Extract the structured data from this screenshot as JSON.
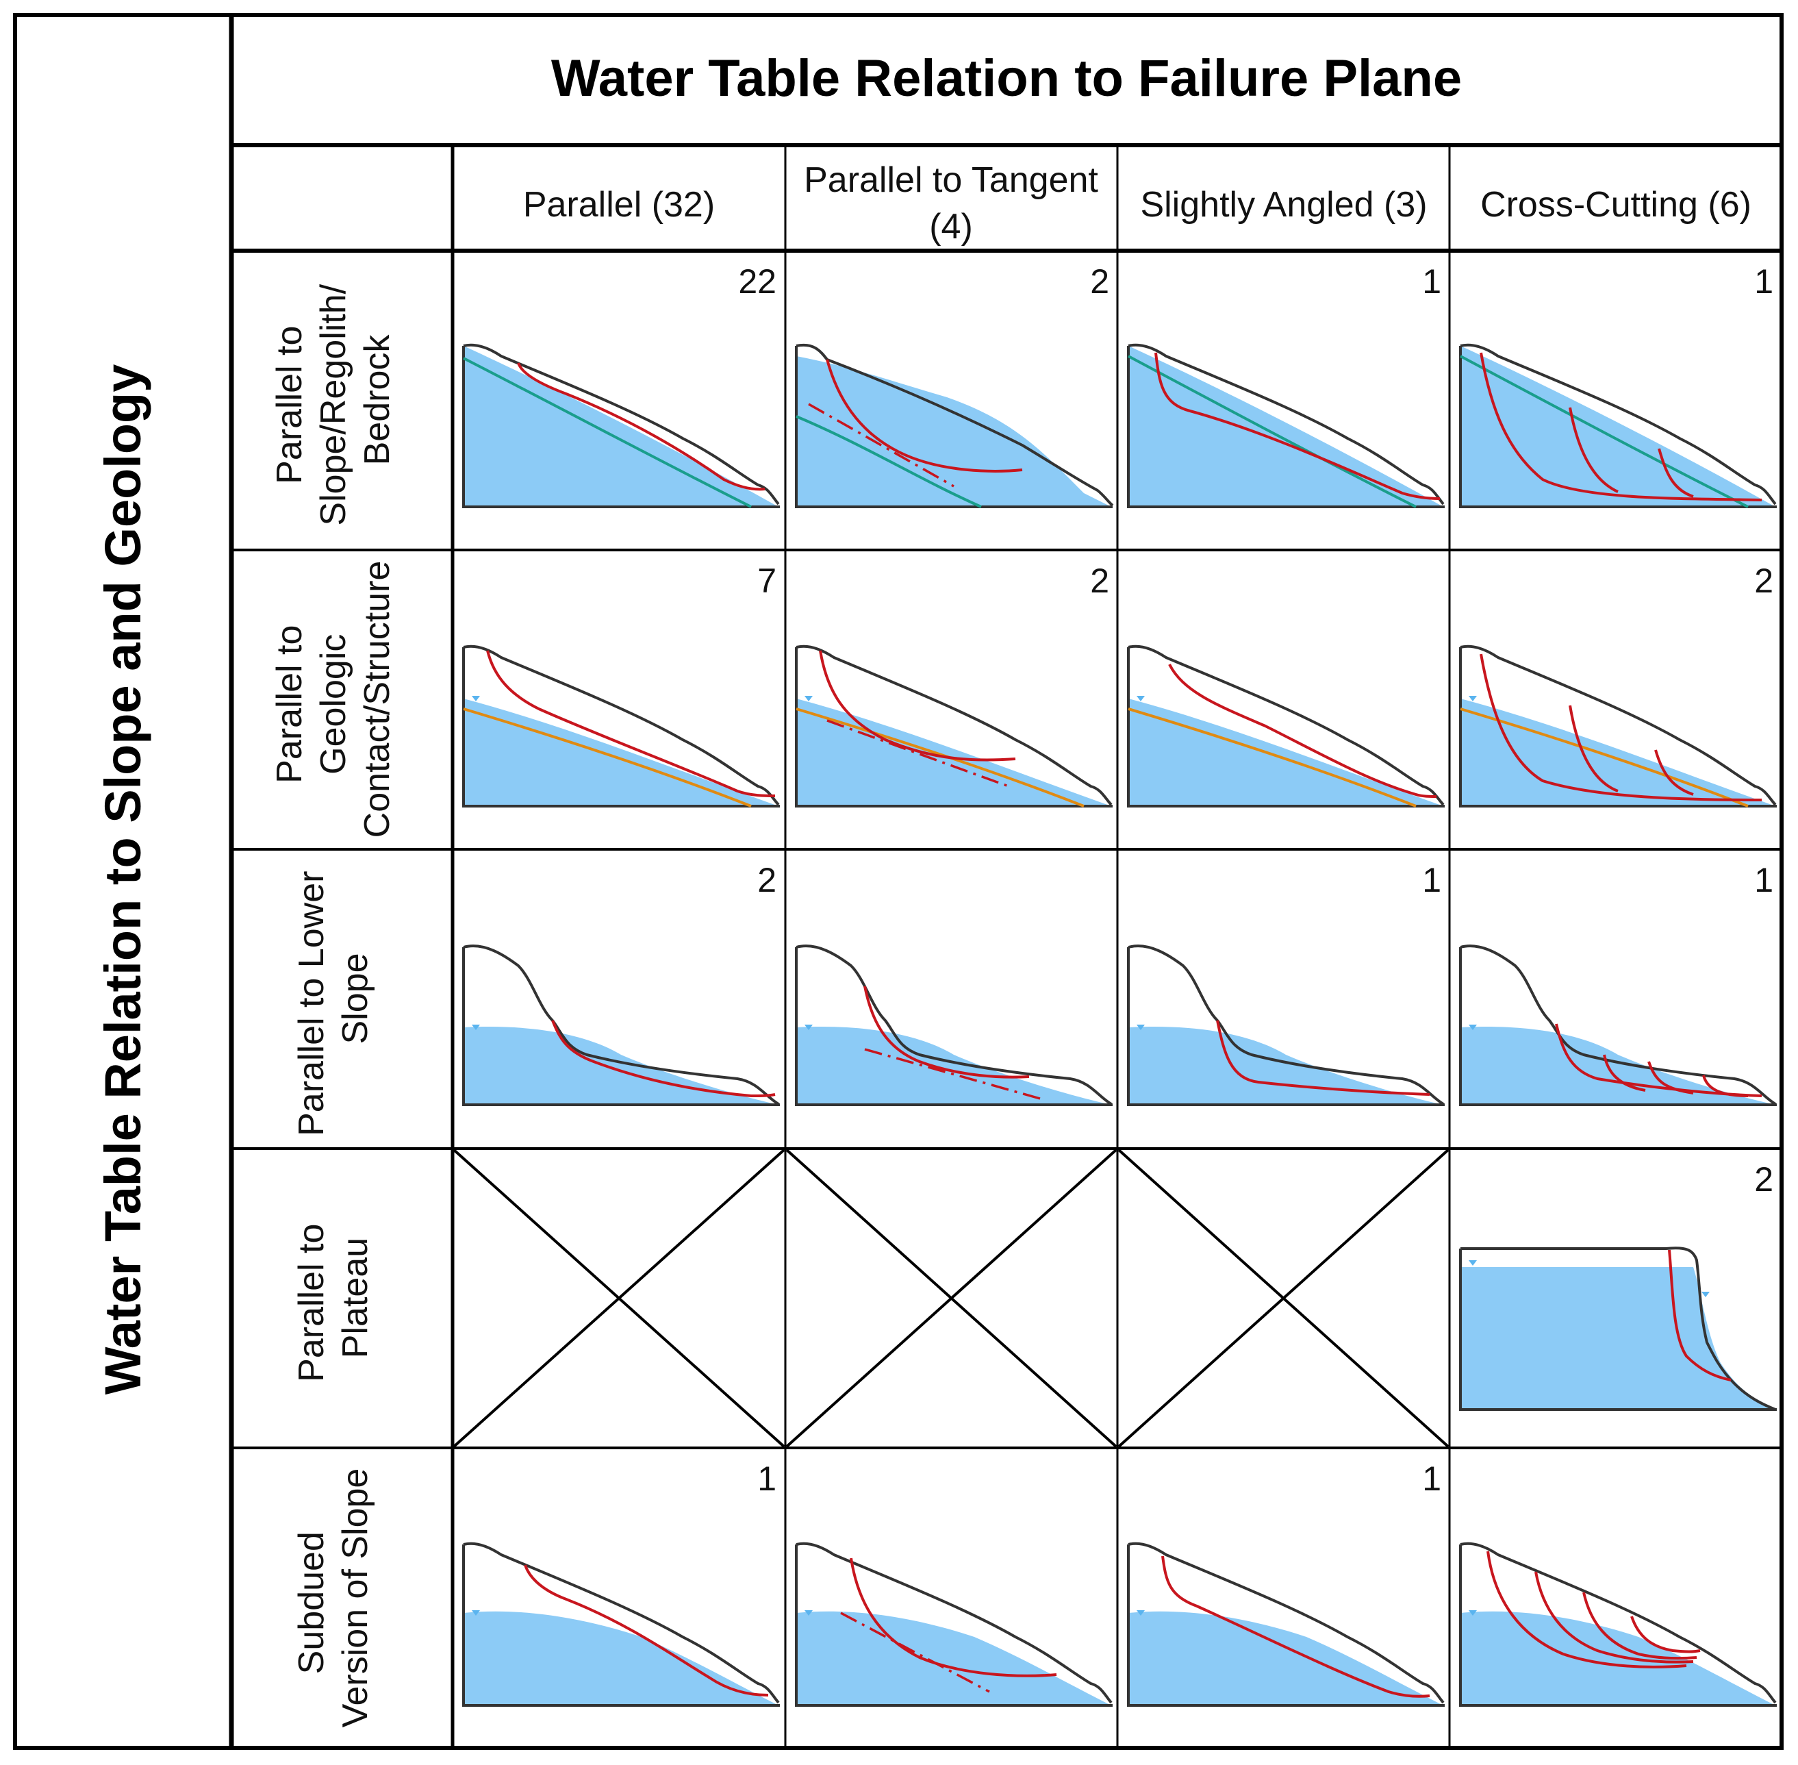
{
  "figure": {
    "main_title": "Water Table Relation to Failure Plane",
    "side_title": "Water Table Relation to Slope and Geology"
  },
  "columns": [
    {
      "label_line1": "Parallel (32)",
      "label_line2": ""
    },
    {
      "label_line1": "Parallel to Tangent",
      "label_line2": "(4)"
    },
    {
      "label_line1": "Slightly Angled (3)",
      "label_line2": ""
    },
    {
      "label_line1": "Cross-Cutting (6)",
      "label_line2": ""
    }
  ],
  "rows": [
    {
      "lines": [
        "Parallel to",
        "Slope/Regolith/",
        "Bedrock"
      ],
      "counts": [
        "22",
        "2",
        "1",
        "1"
      ]
    },
    {
      "lines": [
        "Parallel to",
        "Geologic",
        "Contact/Structure"
      ],
      "counts": [
        "7",
        "2",
        "",
        "2"
      ]
    },
    {
      "lines": [
        "Parallel to Lower",
        "Slope"
      ],
      "counts": [
        "2",
        "",
        "1",
        "1"
      ]
    },
    {
      "lines": [
        "Parallel to",
        "Plateau"
      ],
      "counts": [
        "",
        "",
        "",
        "2"
      ]
    },
    {
      "lines": [
        "Subdued",
        "Version of Slope"
      ],
      "counts": [
        "1",
        "",
        "1",
        ""
      ]
    }
  ],
  "empty_cells": [
    [
      3,
      0
    ],
    [
      3,
      1
    ],
    [
      3,
      2
    ]
  ],
  "colors": {
    "water": "#8ccbf6",
    "ground_line": "#333333",
    "failure_plane": "#c8161e",
    "bedrock_regolith": "#1a9e8c",
    "geologic_contact": "#e08a12"
  }
}
